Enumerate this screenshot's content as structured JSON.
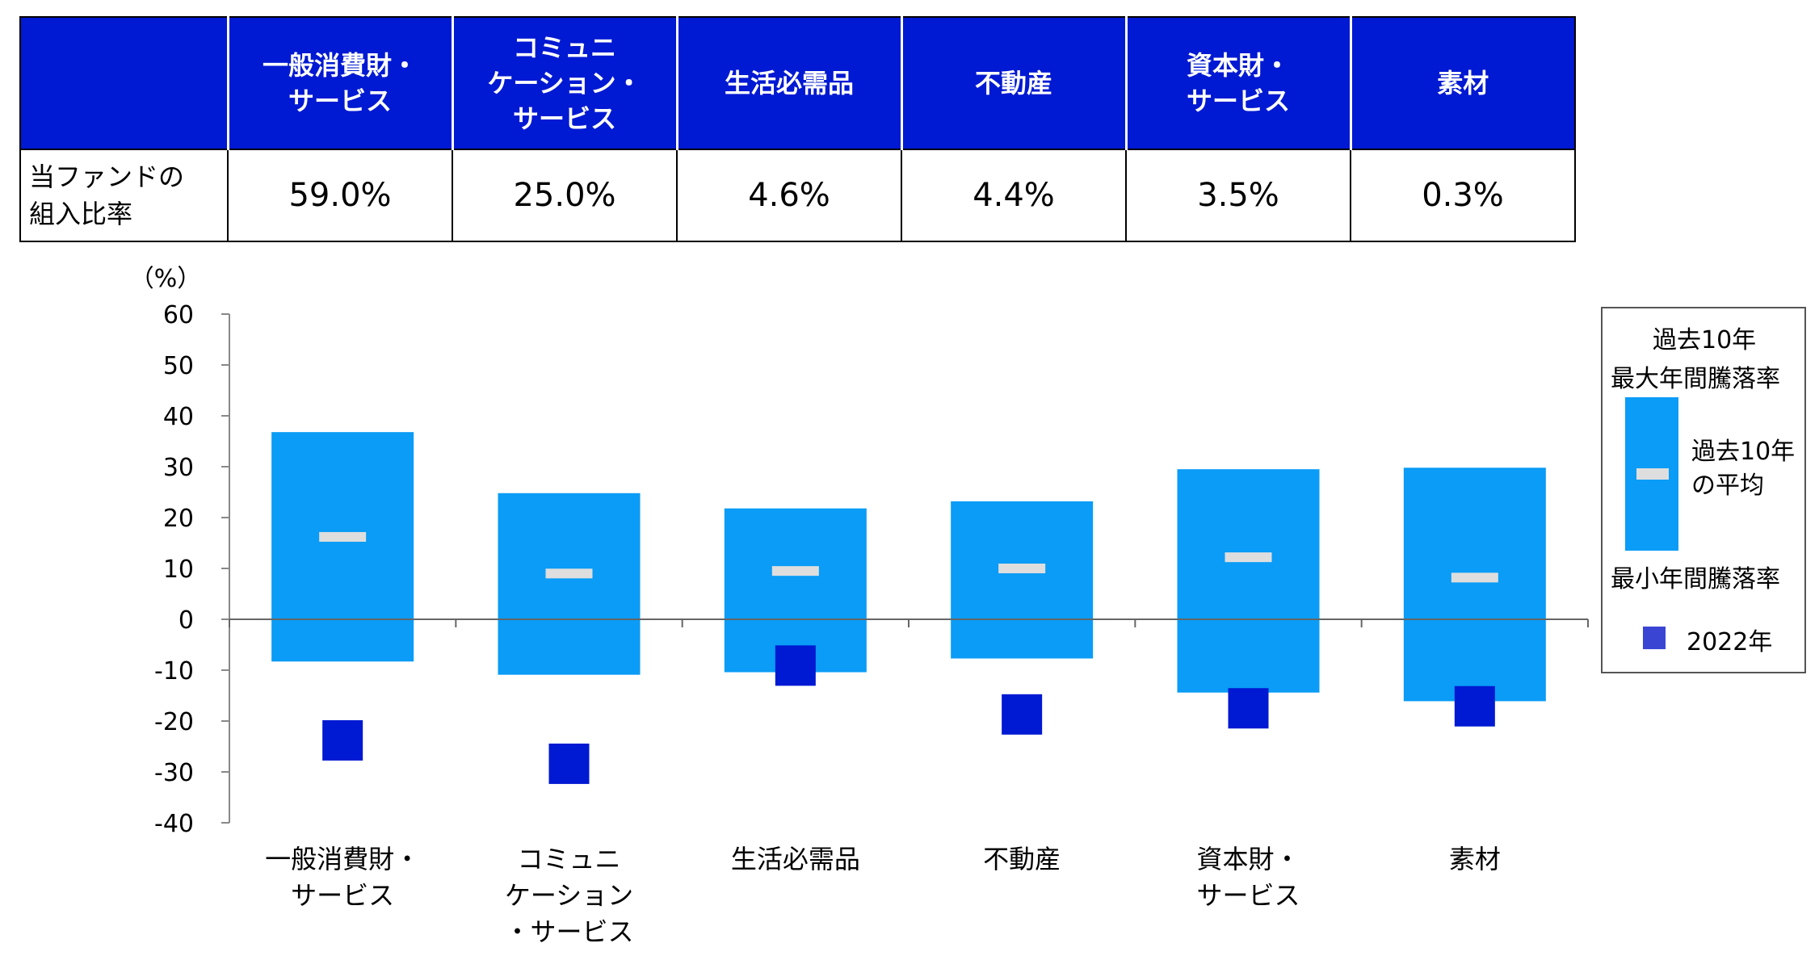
{
  "table": {
    "headers": [
      [
        "一般消費財・",
        "サービス"
      ],
      [
        "コミュニ",
        "ケーション・",
        "サービス"
      ],
      [
        "生活必需品"
      ],
      [
        "不動産"
      ],
      [
        "資本財・",
        "サービス"
      ],
      [
        "素材"
      ]
    ],
    "row_label": [
      "当ファンドの",
      "組入比率"
    ],
    "values": [
      "59.0%",
      "25.0%",
      "4.6%",
      "4.4%",
      "3.5%",
      "0.3%"
    ]
  },
  "legend": {
    "title_line1": "過去10年",
    "max_label": "最大年間騰落率",
    "avg_line1": "過去10年",
    "avg_line2": "の平均",
    "min_label": "最小年間騰落率",
    "year_label": "2022年"
  },
  "colors": {
    "header_bg": "#0019d2",
    "range_bar": "#0a9cf6",
    "average_mark": "#dedede",
    "year_marker": "#0019d2"
  },
  "chart_data": {
    "type": "floating-bar-with-markers",
    "y_unit": "（%）",
    "ylim": [
      -40,
      60
    ],
    "y_ticks": [
      "60",
      "50",
      "40",
      "30",
      "20",
      "10",
      "0",
      "-10",
      "-20",
      "-30",
      "-40"
    ],
    "categories": [
      [
        "一般消費財・",
        "サービス"
      ],
      [
        "コミュニ",
        "ケーション",
        "・サービス"
      ],
      [
        "生活必需品"
      ],
      [
        "不動産"
      ],
      [
        "資本財・",
        "サービス"
      ],
      [
        "素材"
      ]
    ],
    "max": [
      36.8,
      24.8,
      21.8,
      23.2,
      29.5,
      29.8
    ],
    "min": [
      -8.3,
      -10.9,
      -10.4,
      -7.7,
      -14.4,
      -16.1
    ],
    "average": [
      16.2,
      9.0,
      9.5,
      10.0,
      12.2,
      8.2
    ],
    "year_2022": [
      -23.8,
      -28.4,
      -9.1,
      -18.7,
      -17.5,
      -17.1
    ]
  }
}
